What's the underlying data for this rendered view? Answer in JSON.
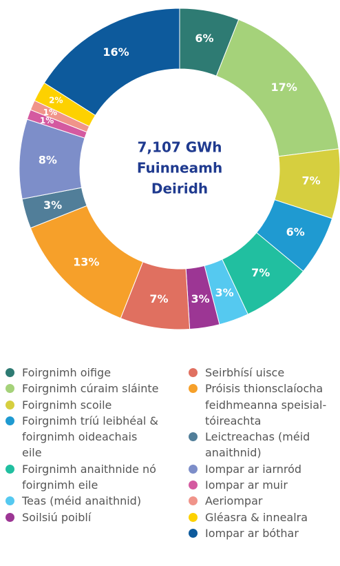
{
  "chart_data": {
    "type": "donut",
    "center_label": [
      "7,107 GWh",
      "Fuinneamh",
      "Deiridh"
    ],
    "categories": [
      "Foirgnimh oifige",
      "Foirgnimh cúraim sláinte",
      "Foirgnimh scoile",
      "Foirgnimh tríú leibhéal & foirgnimh oideachais eile",
      "Foirgnimh anaithnide nó foirgnimh eile",
      "Teas (méid anaithnid)",
      "Soilsiú poiblí",
      "Seirbhísí uisce",
      "Próisis thionsclaíocha feidhmeanna speisial-tóireachta",
      "Leictreachas (méid anaithnid)",
      "Iompar ar iarnród",
      "Iompar ar muir",
      "Aeriompar",
      "Gléasra & innealra",
      "Iompar ar bóthar"
    ],
    "values": [
      6,
      17,
      7,
      6,
      7,
      3,
      3,
      7,
      13,
      3,
      8,
      1,
      1,
      2,
      16
    ],
    "value_labels": [
      "6%",
      "17%",
      "7%",
      "6%",
      "7%",
      "3%",
      "3%",
      "7%",
      "13%",
      "3%",
      "8%",
      "1%",
      "1%",
      "2%",
      "16%"
    ],
    "colors": [
      "#2e7b73",
      "#a5d27a",
      "#d6cf3f",
      "#1f9ad1",
      "#21bfa0",
      "#55c9f0",
      "#9c3694",
      "#e07060",
      "#f6a02a",
      "#517e99",
      "#7d8ec9",
      "#d45aa0",
      "#f0948a",
      "#fdd100",
      "#0d5a9c"
    ]
  }
}
